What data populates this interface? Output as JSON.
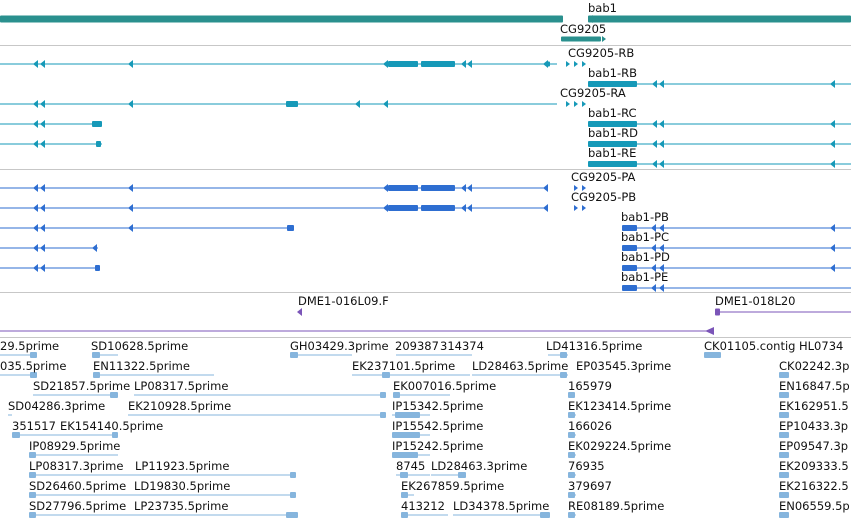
{
  "colors": {
    "gene": "#2a908e",
    "transcript": "#1699b8",
    "protein": "#2e6ed1",
    "oligo": "#7b55b8",
    "est": "#86b5dd",
    "separator": "#c7c7c7"
  },
  "genes": [
    {
      "label": "bab1"
    },
    {
      "label": "CG9205"
    }
  ],
  "transcripts": [
    {
      "label": "CG9205-RB"
    },
    {
      "label": "bab1-RB"
    },
    {
      "label": "CG9205-RA"
    },
    {
      "label": "bab1-RC"
    },
    {
      "label": "bab1-RD"
    },
    {
      "label": "bab1-RE"
    }
  ],
  "proteins": [
    {
      "label": "CG9205-PA"
    },
    {
      "label": "CG9205-PB"
    },
    {
      "label": "bab1-PB"
    },
    {
      "label": "bab1-PC"
    },
    {
      "label": "bab1-PD"
    },
    {
      "label": "bab1-PE"
    }
  ],
  "oligos": [
    {
      "label": "DME1-016L09.F"
    },
    {
      "label": "DME1-018L20"
    }
  ],
  "ests": [
    {
      "label": "29.5prime"
    },
    {
      "label": "SD10628.5prime"
    },
    {
      "label": "GH03429.3prime"
    },
    {
      "label": "209387"
    },
    {
      "label": "314374"
    },
    {
      "label": "LD41316.5prime"
    },
    {
      "label": "CK01105.contig"
    },
    {
      "label": "HL0734"
    },
    {
      "label": "035.5prime"
    },
    {
      "label": "EN11322.5prime"
    },
    {
      "label": "EK237101.5prime"
    },
    {
      "label": "LD28463.5prime"
    },
    {
      "label": "EP03545.3prime"
    },
    {
      "label": "CK02242.3p"
    },
    {
      "label": "SD21857.5prime"
    },
    {
      "label": "LP08317.5prime"
    },
    {
      "label": "EK007016.5prime"
    },
    {
      "label": "165979"
    },
    {
      "label": "EN16847.5p"
    },
    {
      "label": "SD04286.3prime"
    },
    {
      "label": "EK210928.5prime"
    },
    {
      "label": "IP15342.5prime"
    },
    {
      "label": "EK123414.5prime"
    },
    {
      "label": "EK162951.5"
    },
    {
      "label": "351517"
    },
    {
      "label": "EK154140.5prime"
    },
    {
      "label": "IP15542.5prime"
    },
    {
      "label": "166026"
    },
    {
      "label": "EP10433.3p"
    },
    {
      "label": "IP08929.5prime"
    },
    {
      "label": "IP15242.5prime"
    },
    {
      "label": "EK029224.5prime"
    },
    {
      "label": "EP09547.3p"
    },
    {
      "label": "LP08317.3prime"
    },
    {
      "label": "LP11923.5prime"
    },
    {
      "label": "8745"
    },
    {
      "label": "LD28463.3prime"
    },
    {
      "label": "76935"
    },
    {
      "label": "EK209333.5"
    },
    {
      "label": "SD26460.5prime"
    },
    {
      "label": "LD19830.5prime"
    },
    {
      "label": "EK267859.5prime"
    },
    {
      "label": "379697"
    },
    {
      "label": "EK216322.5"
    },
    {
      "label": "SD27796.5prime"
    },
    {
      "label": "LP23735.5prime"
    },
    {
      "label": "413212"
    },
    {
      "label": "LD34378.5prime"
    },
    {
      "label": "RE08189.5prime"
    },
    {
      "label": "EN06559.5p"
    }
  ]
}
